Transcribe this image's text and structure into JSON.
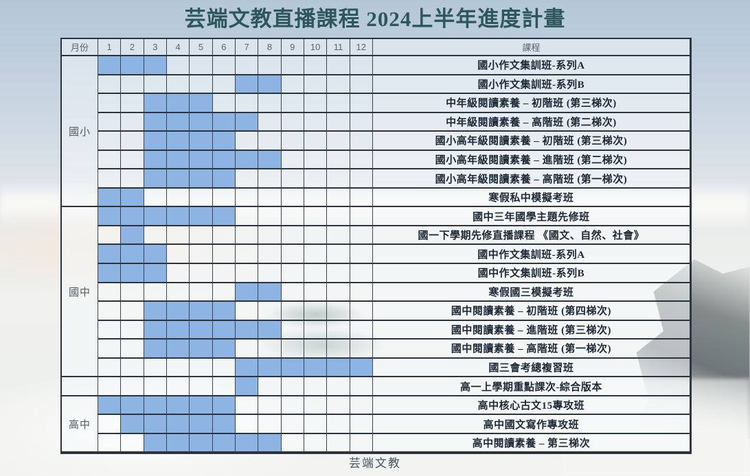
{
  "page": {
    "title": "芸端文教直播課程 2024上半年進度計畫",
    "footer": "芸端文教"
  },
  "colors": {
    "bar_fill": "#8DB4E2",
    "title": "#2E575B",
    "grid_line": "#2B343E",
    "header_text": "#59646E",
    "course_text": "#1C2836",
    "footer_text": "#43545F"
  },
  "chart_data": {
    "type": "table",
    "subtype": "gantt-schedule",
    "title": "芸端文教直播課程 2024上半年進度計畫",
    "header": {
      "month_label": "月份",
      "course_label": "課程"
    },
    "month_axis": [
      "1",
      "2",
      "3",
      "4",
      "5",
      "6",
      "7",
      "8",
      "9",
      "10",
      "11",
      "12"
    ],
    "groups": [
      {
        "label": "國小",
        "courses": [
          {
            "name": "國小作文集訓班-系列A",
            "months": [
              1,
              2,
              3
            ]
          },
          {
            "name": "國小作文集訓班-系列B",
            "months": [
              7,
              8
            ]
          },
          {
            "name": "中年級閱讀素養 – 初階班 (第三梯次)",
            "months": [
              3,
              4,
              5
            ]
          },
          {
            "name": "中年級閱讀素養 – 高階班 (第二梯次)",
            "months": [
              3,
              4,
              5,
              6,
              7
            ]
          },
          {
            "name": "國小高年級閱讀素養 – 初階班 (第三梯次)",
            "months": [
              3,
              4,
              5,
              6
            ]
          },
          {
            "name": "國小高年級閱讀素養 – 進階班 (第二梯次)",
            "months": [
              3,
              4,
              5,
              6,
              7,
              8
            ]
          },
          {
            "name": "國小高年級閱讀素養 – 高階班 (第一梯次)",
            "months": [
              3,
              4,
              5,
              6
            ]
          },
          {
            "name": "寒假私中模擬考班",
            "months": [
              1,
              2
            ]
          }
        ]
      },
      {
        "label": "國中",
        "courses": [
          {
            "name": "國中三年國學主題先修班",
            "months": [
              1,
              2,
              3,
              4,
              5,
              6
            ]
          },
          {
            "name": "國一下學期先修直播課程 《國文、自然、社會》",
            "months": [
              2
            ]
          },
          {
            "name": "國中作文集訓班-系列A",
            "months": [
              1,
              2,
              3
            ]
          },
          {
            "name": "國中作文集訓班-系列B",
            "months": [
              1,
              2,
              3
            ]
          },
          {
            "name": "寒假國三模擬考班",
            "months": [
              7,
              8
            ]
          },
          {
            "name": "國中閱讀素養 – 初階班 (第四梯次)",
            "months": [
              3,
              4,
              5,
              6
            ]
          },
          {
            "name": "國中閱讀素養 – 進階班 (第三梯次)",
            "months": [
              3,
              4,
              5,
              6,
              7,
              8
            ]
          },
          {
            "name": "國中閱讀素養 – 高階班 (第一梯次)",
            "months": [
              3,
              4,
              5,
              6
            ]
          },
          {
            "name": "國三會考總複習班",
            "months": [
              7,
              8,
              9,
              10,
              11,
              12
            ]
          }
        ]
      },
      {
        "label": "",
        "courses": [
          {
            "name": "高一上學期重點課次-綜合版本",
            "months": [
              7
            ]
          }
        ]
      },
      {
        "label": "高中",
        "courses": [
          {
            "name": "高中核心古文15專攻班",
            "months": [
              1,
              2,
              3,
              4,
              5,
              6
            ]
          },
          {
            "name": "高中國文寫作專攻班",
            "months": [
              2,
              3,
              4,
              5,
              6
            ]
          },
          {
            "name": "高中閱讀素養 – 第三梯次",
            "months": [
              3,
              4,
              5,
              6,
              7,
              8
            ]
          }
        ]
      }
    ]
  }
}
